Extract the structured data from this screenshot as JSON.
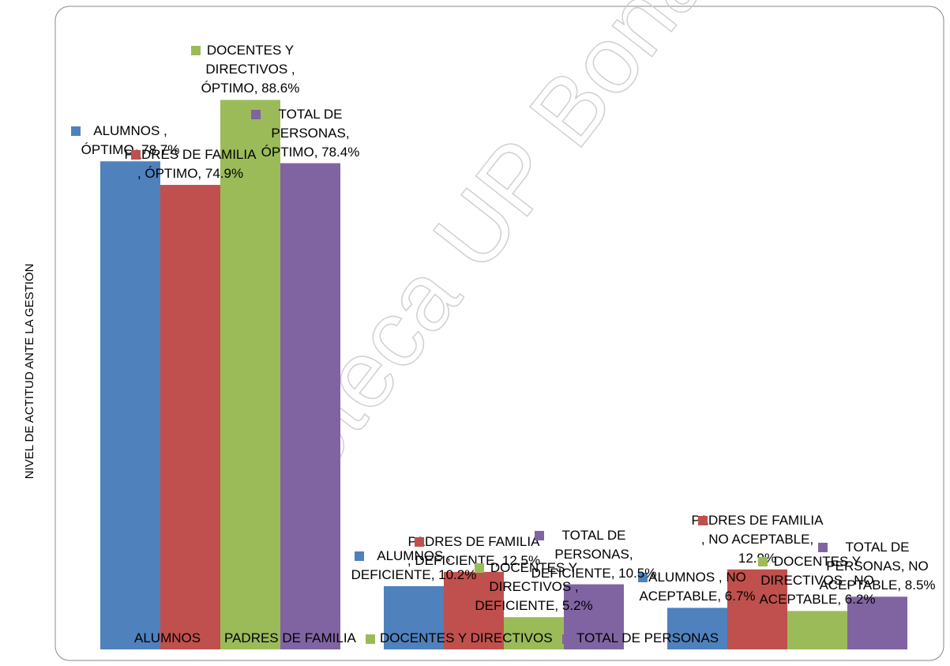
{
  "chart_data": {
    "type": "bar",
    "y_label": "NIVEL DE ACTITUD ANTE LA GESTIÓN",
    "watermark": "Biblioteca UP Bona",
    "categories": [
      "ÓPTIMO",
      "DEFICIENTE",
      "NO ACEPTABLE"
    ],
    "series": [
      {
        "name": "ALUMNOS",
        "color": "#4f81bd",
        "values": [
          78.7,
          10.2,
          6.7
        ],
        "value_labels": [
          "ALUMNOS , ÓPTIMO, 78.7%",
          "ALUMNOS , DEFICIENTE, 10.2%",
          "ALUMNOS , NO ACEPTABLE, 6.7%"
        ]
      },
      {
        "name": "PADRES DE FAMILIA",
        "color": "#c0504d",
        "values": [
          74.9,
          12.5,
          12.9
        ],
        "value_labels": [
          "PADRES DE FAMILIA , ÓPTIMO, 74.9%",
          "PADRES DE FAMILIA , DEFICIENTE, 12.5%",
          "PADRES DE FAMILIA , NO ACEPTABLE, 12.9%"
        ]
      },
      {
        "name": "DOCENTES Y DIRECTIVOS",
        "color": "#9bbb59",
        "values": [
          88.6,
          5.2,
          6.2
        ],
        "value_labels": [
          "DOCENTES Y DIRECTIVOS , ÓPTIMO, 88.6%",
          "DOCENTES Y DIRECTIVOS , DEFICIENTE, 5.2%",
          "DOCENTES Y DIRECTIVOS , NO ACEPTABLE, 6.2%"
        ]
      },
      {
        "name": "TOTAL DE PERSONAS",
        "color": "#8064a2",
        "values": [
          78.4,
          10.5,
          8.5
        ],
        "value_labels": [
          "TOTAL DE PERSONAS, ÓPTIMO, 78.4%",
          "TOTAL DE PERSONAS, DEFICIENTE, 10.5%",
          "TOTAL DE PERSONAS, NO ACEPTABLE, 8.5%"
        ]
      }
    ],
    "ylim": [
      0,
      100
    ],
    "legend": "bottom"
  }
}
